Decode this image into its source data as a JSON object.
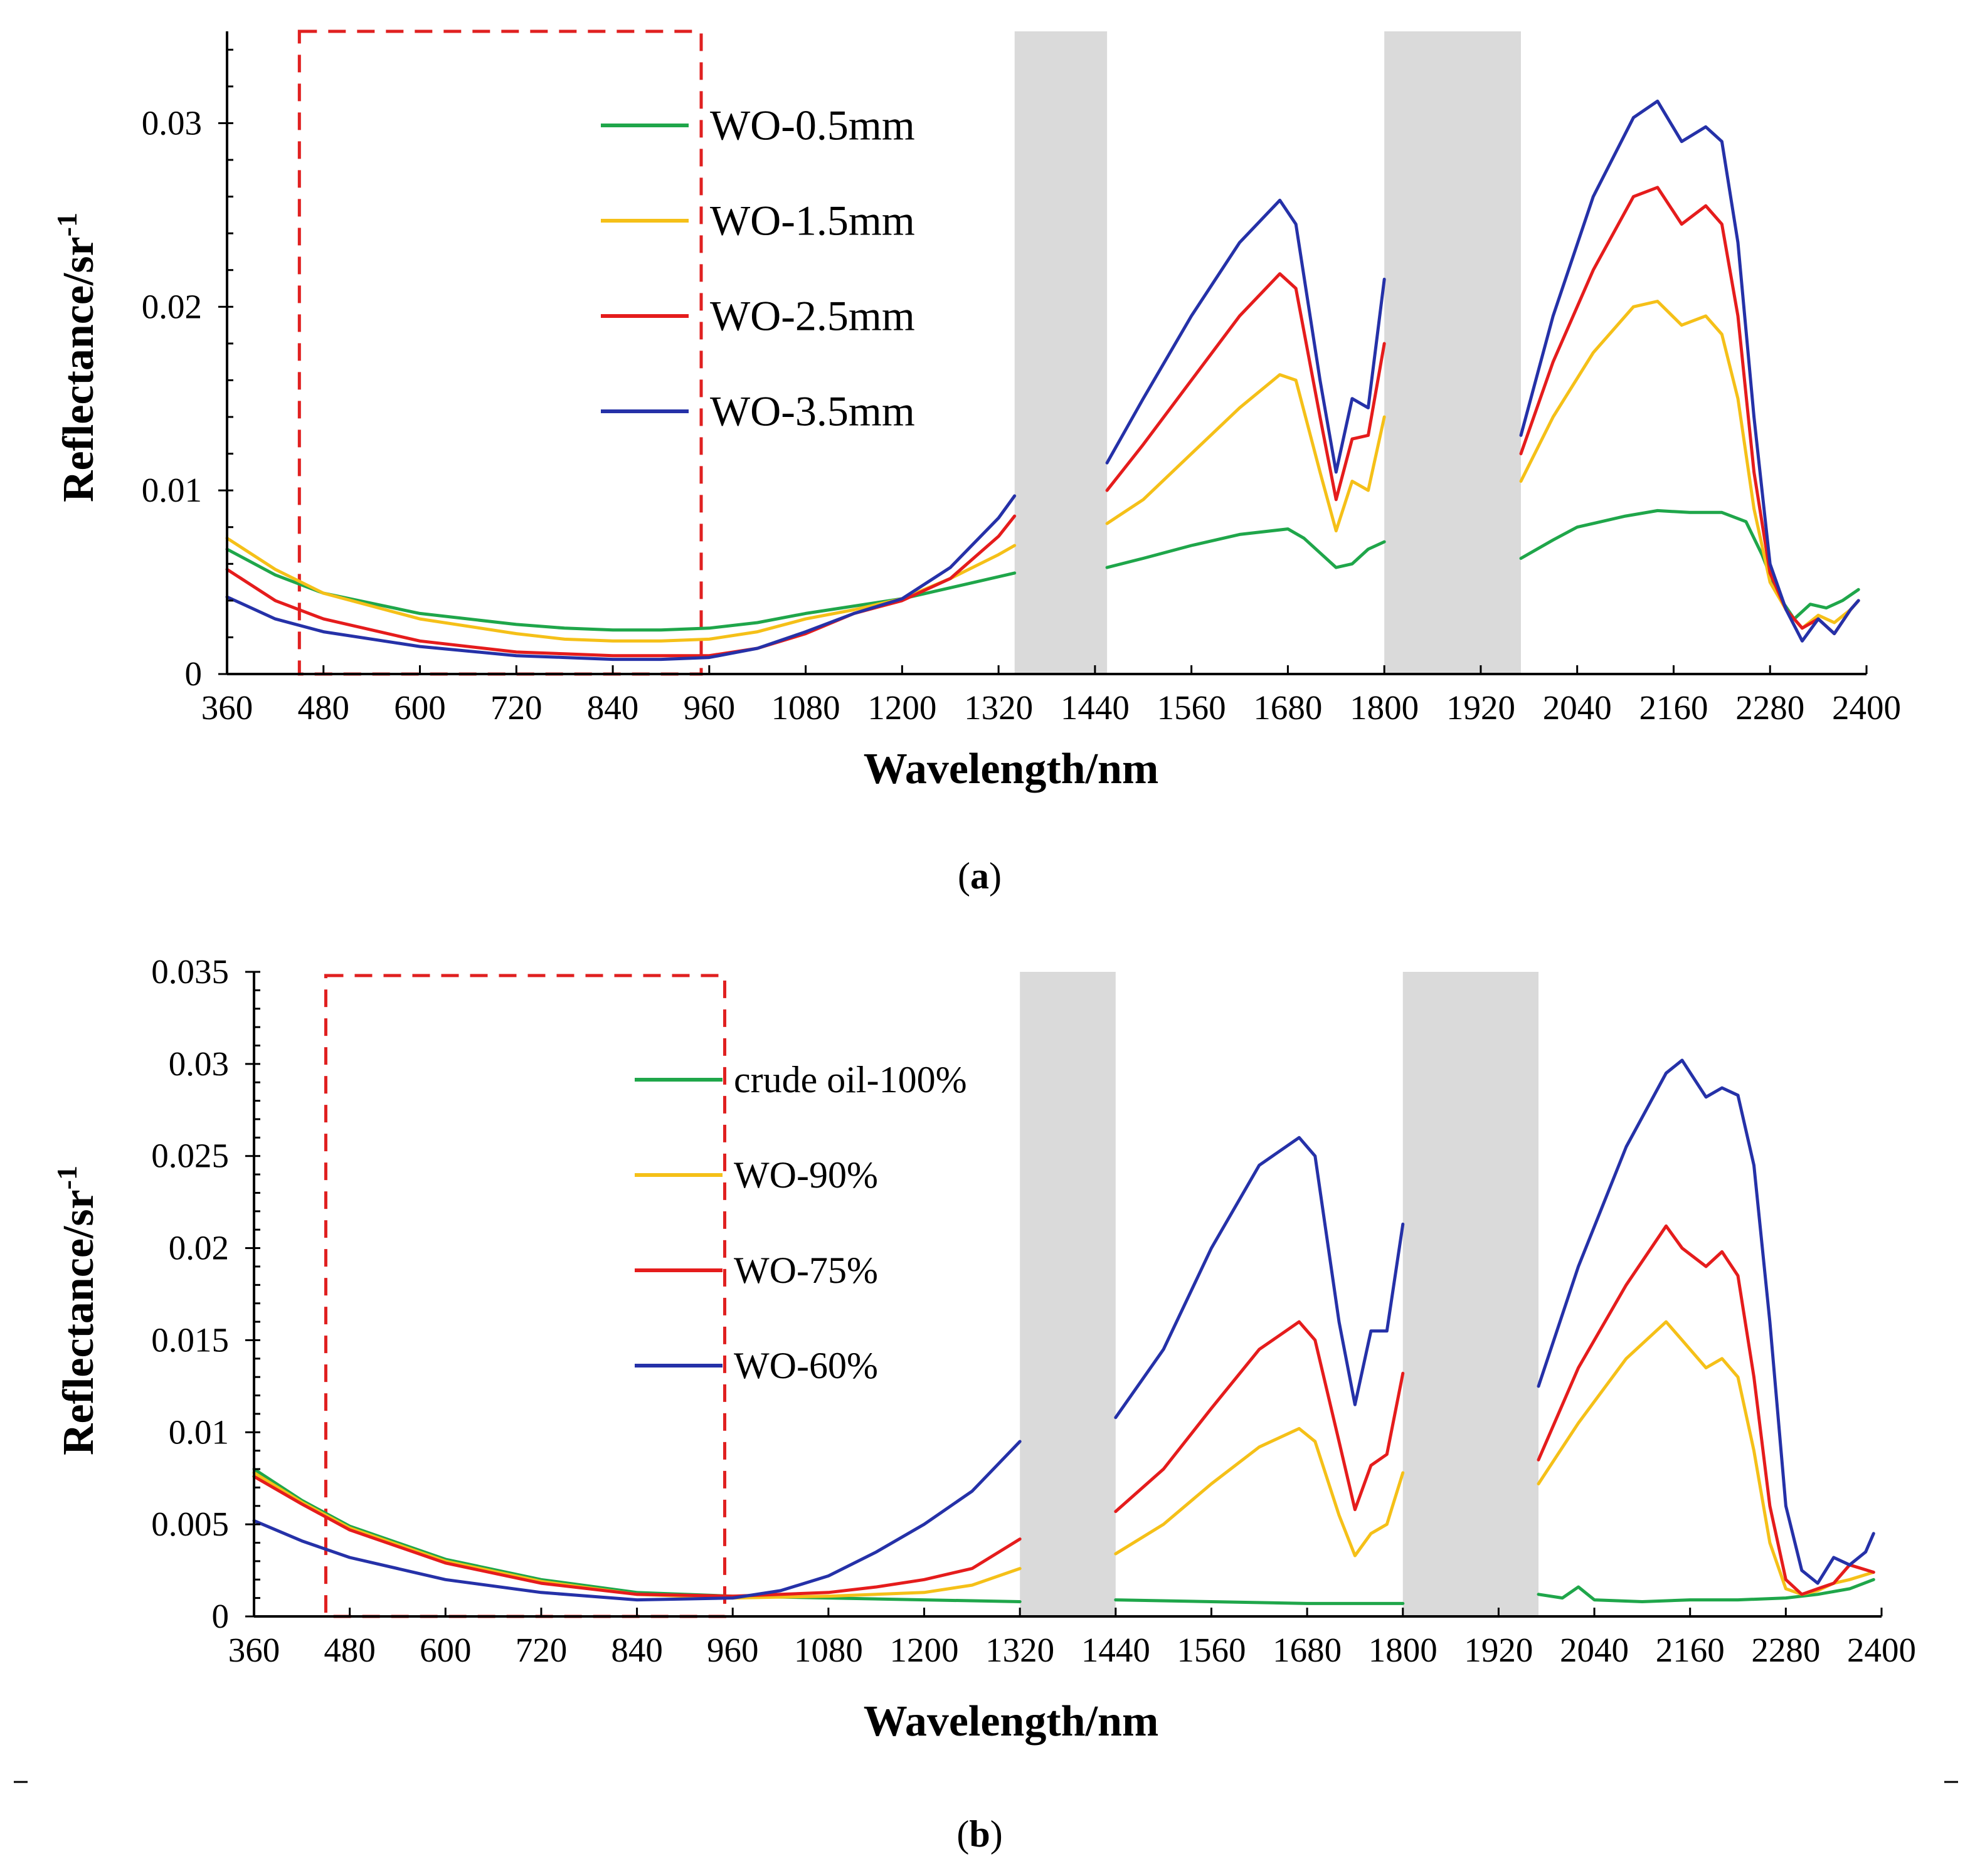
{
  "chart_data": [
    {
      "type": "line",
      "panel_label": "a",
      "xlabel": "Wavelength/nm",
      "ylabel_base": "Reflectance/sr",
      "ylabel_sup": "-1",
      "xlim": [
        360,
        2400
      ],
      "ylim": [
        0,
        0.035
      ],
      "xticks": [
        360,
        480,
        600,
        720,
        840,
        960,
        1080,
        1200,
        1320,
        1440,
        1560,
        1680,
        1800,
        1920,
        2040,
        2160,
        2280,
        2400
      ],
      "yticks": [
        0,
        0.01,
        0.02,
        0.03
      ],
      "ytick_labels": [
        "0",
        "0.01",
        "0.02",
        "0.03"
      ],
      "grid": false,
      "legend_position": "top-center",
      "highlight_box": {
        "x": [
          450,
          950
        ],
        "y": [
          0,
          0.035
        ],
        "style": "dashed",
        "color": "#e02020"
      },
      "masked_bands": [
        [
          1340,
          1455
        ],
        [
          1800,
          1970
        ]
      ],
      "series": [
        {
          "name": "WO-0.5mm",
          "color": "#1fa64a",
          "x": [
            360,
            420,
            480,
            600,
            720,
            780,
            840,
            900,
            960,
            1020,
            1080,
            1140,
            1200,
            1260,
            1320,
            1340,
            1455,
            1500,
            1560,
            1620,
            1680,
            1700,
            1740,
            1760,
            1780,
            1800,
            1970,
            2010,
            2040,
            2100,
            2140,
            2180,
            2220,
            2250,
            2270,
            2290,
            2310,
            2330,
            2350,
            2370,
            2390
          ],
          "values": [
            0.0068,
            0.0054,
            0.0044,
            0.0033,
            0.0027,
            0.0025,
            0.0024,
            0.0024,
            0.0025,
            0.0028,
            0.0033,
            0.0037,
            0.0041,
            0.0047,
            0.0053,
            0.0055,
            0.0058,
            0.0063,
            0.007,
            0.0076,
            0.0079,
            0.0074,
            0.0058,
            0.006,
            0.0068,
            0.0072,
            0.0063,
            0.0073,
            0.008,
            0.0086,
            0.0089,
            0.0088,
            0.0088,
            0.0083,
            0.0065,
            0.0043,
            0.003,
            0.0038,
            0.0036,
            0.004,
            0.0046
          ]
        },
        {
          "name": "WO-1.5mm",
          "color": "#f5c018",
          "x": [
            360,
            420,
            480,
            600,
            720,
            780,
            840,
            900,
            960,
            1020,
            1080,
            1140,
            1200,
            1260,
            1320,
            1340,
            1455,
            1500,
            1560,
            1620,
            1670,
            1690,
            1720,
            1740,
            1760,
            1780,
            1800,
            1970,
            2010,
            2060,
            2110,
            2140,
            2170,
            2200,
            2220,
            2240,
            2260,
            2280,
            2300,
            2320,
            2340,
            2360,
            2380,
            2390
          ],
          "values": [
            0.0074,
            0.0057,
            0.0044,
            0.003,
            0.0022,
            0.0019,
            0.0018,
            0.0018,
            0.0019,
            0.0023,
            0.003,
            0.0035,
            0.0041,
            0.0052,
            0.0065,
            0.007,
            0.0082,
            0.0095,
            0.012,
            0.0145,
            0.0163,
            0.016,
            0.011,
            0.0078,
            0.0105,
            0.01,
            0.014,
            0.0105,
            0.014,
            0.0175,
            0.02,
            0.0203,
            0.019,
            0.0195,
            0.0185,
            0.015,
            0.009,
            0.005,
            0.0035,
            0.0025,
            0.0032,
            0.0028,
            0.0035,
            0.004
          ]
        },
        {
          "name": "WO-2.5mm",
          "color": "#e51c1c",
          "x": [
            360,
            420,
            480,
            600,
            720,
            780,
            840,
            900,
            960,
            1020,
            1080,
            1140,
            1200,
            1260,
            1320,
            1340,
            1455,
            1500,
            1560,
            1620,
            1670,
            1690,
            1720,
            1740,
            1760,
            1780,
            1800,
            1970,
            2010,
            2060,
            2110,
            2140,
            2170,
            2200,
            2220,
            2240,
            2260,
            2280,
            2300,
            2320,
            2340,
            2360,
            2380,
            2390
          ],
          "values": [
            0.0057,
            0.004,
            0.003,
            0.0018,
            0.0012,
            0.0011,
            0.001,
            0.001,
            0.001,
            0.0014,
            0.0022,
            0.0033,
            0.004,
            0.0052,
            0.0075,
            0.0086,
            0.01,
            0.0125,
            0.016,
            0.0195,
            0.0218,
            0.021,
            0.014,
            0.0095,
            0.0128,
            0.013,
            0.018,
            0.012,
            0.017,
            0.022,
            0.026,
            0.0265,
            0.0245,
            0.0255,
            0.0245,
            0.0195,
            0.011,
            0.0055,
            0.0035,
            0.0025,
            0.003,
            0.0022,
            0.0035,
            0.004
          ]
        },
        {
          "name": "WO-3.5mm",
          "color": "#2531a8",
          "x": [
            360,
            420,
            480,
            600,
            720,
            780,
            840,
            900,
            960,
            1020,
            1080,
            1140,
            1200,
            1260,
            1320,
            1340,
            1455,
            1500,
            1560,
            1620,
            1670,
            1690,
            1720,
            1740,
            1760,
            1780,
            1800,
            1970,
            2010,
            2060,
            2110,
            2140,
            2170,
            2200,
            2220,
            2240,
            2260,
            2280,
            2300,
            2320,
            2340,
            2360,
            2380,
            2390
          ],
          "values": [
            0.0042,
            0.003,
            0.0023,
            0.0015,
            0.001,
            0.0009,
            0.0008,
            0.0008,
            0.0009,
            0.0014,
            0.0023,
            0.0033,
            0.0041,
            0.0058,
            0.0085,
            0.0097,
            0.0115,
            0.015,
            0.0195,
            0.0235,
            0.0258,
            0.0245,
            0.016,
            0.011,
            0.015,
            0.0145,
            0.0215,
            0.013,
            0.0195,
            0.026,
            0.0303,
            0.0312,
            0.029,
            0.0298,
            0.029,
            0.0235,
            0.014,
            0.006,
            0.0035,
            0.0018,
            0.003,
            0.0022,
            0.0035,
            0.004
          ]
        }
      ]
    },
    {
      "type": "line",
      "panel_label": "b",
      "xlabel": "Wavelength/nm",
      "ylabel_base": "Reflectance/sr",
      "ylabel_sup": "-1",
      "xlim": [
        360,
        2400
      ],
      "ylim": [
        0,
        0.035
      ],
      "xticks": [
        360,
        480,
        600,
        720,
        840,
        960,
        1080,
        1200,
        1320,
        1440,
        1560,
        1680,
        1800,
        1920,
        2040,
        2160,
        2280,
        2400
      ],
      "yticks": [
        0,
        0.005,
        0.01,
        0.015,
        0.02,
        0.025,
        0.03,
        0.035
      ],
      "ytick_labels": [
        "0",
        "0.005",
        "0.01",
        "0.015",
        "0.02",
        "0.025",
        "0.03",
        "0.035"
      ],
      "grid": false,
      "legend_position": "top-center",
      "highlight_box": {
        "x": [
          450,
          950
        ],
        "y": [
          0,
          0.0348
        ],
        "style": "dashed",
        "color": "#e02020"
      },
      "masked_bands": [
        [
          1320,
          1440
        ],
        [
          1800,
          1970
        ]
      ],
      "series": [
        {
          "name": "crude oil-100%",
          "color": "#1fa64a",
          "x": [
            360,
            420,
            480,
            600,
            720,
            840,
            960,
            1080,
            1200,
            1320,
            1440,
            1560,
            1680,
            1800,
            1970,
            2000,
            2020,
            2040,
            2100,
            2160,
            2220,
            2280,
            2320,
            2360,
            2390
          ],
          "values": [
            0.008,
            0.0063,
            0.0049,
            0.0031,
            0.002,
            0.0013,
            0.0011,
            0.001,
            0.0009,
            0.0008,
            0.0009,
            0.0008,
            0.0007,
            0.0007,
            0.0012,
            0.001,
            0.0016,
            0.0009,
            0.0008,
            0.0009,
            0.0009,
            0.001,
            0.0012,
            0.0015,
            0.002
          ]
        },
        {
          "name": "WO-90%",
          "color": "#f5c018",
          "x": [
            360,
            420,
            480,
            600,
            720,
            840,
            960,
            1080,
            1200,
            1260,
            1320,
            1440,
            1500,
            1560,
            1620,
            1670,
            1690,
            1720,
            1740,
            1760,
            1780,
            1800,
            1970,
            2020,
            2080,
            2130,
            2150,
            2180,
            2200,
            2220,
            2240,
            2260,
            2280,
            2300,
            2320,
            2340,
            2360,
            2390
          ],
          "values": [
            0.0078,
            0.0062,
            0.0048,
            0.003,
            0.0019,
            0.0012,
            0.001,
            0.0011,
            0.0013,
            0.0017,
            0.0026,
            0.0034,
            0.005,
            0.0072,
            0.0092,
            0.0102,
            0.0095,
            0.0055,
            0.0033,
            0.0045,
            0.005,
            0.0078,
            0.0072,
            0.0105,
            0.014,
            0.016,
            0.015,
            0.0135,
            0.014,
            0.013,
            0.009,
            0.004,
            0.0015,
            0.0012,
            0.0014,
            0.0018,
            0.002,
            0.0024
          ]
        },
        {
          "name": "WO-75%",
          "color": "#e51c1c",
          "x": [
            360,
            420,
            480,
            600,
            720,
            840,
            960,
            1080,
            1140,
            1200,
            1260,
            1320,
            1440,
            1500,
            1560,
            1620,
            1670,
            1690,
            1720,
            1740,
            1760,
            1780,
            1800,
            1970,
            2020,
            2080,
            2130,
            2150,
            2180,
            2200,
            2220,
            2240,
            2260,
            2280,
            2300,
            2320,
            2340,
            2360,
            2390
          ],
          "values": [
            0.0076,
            0.0061,
            0.0047,
            0.0029,
            0.0018,
            0.0012,
            0.0011,
            0.0013,
            0.0016,
            0.002,
            0.0026,
            0.0042,
            0.0057,
            0.008,
            0.0113,
            0.0145,
            0.016,
            0.015,
            0.0095,
            0.0058,
            0.0082,
            0.0088,
            0.0132,
            0.0085,
            0.0135,
            0.018,
            0.0212,
            0.02,
            0.019,
            0.0198,
            0.0185,
            0.013,
            0.006,
            0.002,
            0.0012,
            0.0015,
            0.0018,
            0.0028,
            0.0024
          ]
        },
        {
          "name": "WO-60%",
          "color": "#2531a8",
          "x": [
            360,
            420,
            480,
            600,
            720,
            840,
            960,
            1020,
            1080,
            1140,
            1200,
            1260,
            1320,
            1440,
            1500,
            1560,
            1620,
            1670,
            1690,
            1720,
            1740,
            1760,
            1780,
            1800,
            1970,
            2020,
            2080,
            2130,
            2150,
            2180,
            2200,
            2220,
            2240,
            2260,
            2280,
            2300,
            2320,
            2340,
            2360,
            2380,
            2390
          ],
          "values": [
            0.0052,
            0.0041,
            0.0032,
            0.002,
            0.0013,
            0.0009,
            0.001,
            0.0014,
            0.0022,
            0.0035,
            0.005,
            0.0068,
            0.0095,
            0.0108,
            0.0145,
            0.02,
            0.0245,
            0.026,
            0.025,
            0.016,
            0.0115,
            0.0155,
            0.0155,
            0.0213,
            0.0125,
            0.019,
            0.0255,
            0.0295,
            0.0302,
            0.0282,
            0.0287,
            0.0283,
            0.0245,
            0.016,
            0.006,
            0.0025,
            0.0018,
            0.0032,
            0.0028,
            0.0035,
            0.0045
          ]
        }
      ]
    }
  ],
  "captions": [
    "a",
    "b"
  ],
  "colors": {
    "mask": "#dadada",
    "box": "#e02020",
    "axis": "#000000"
  }
}
